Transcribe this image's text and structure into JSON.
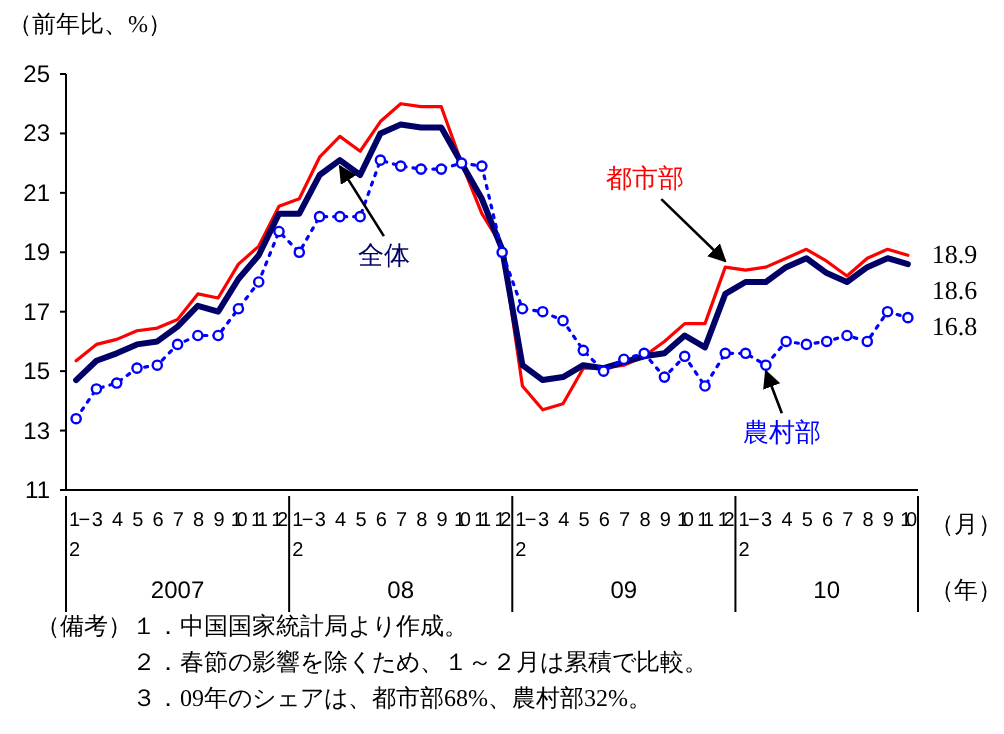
{
  "chart_data": {
    "type": "line",
    "ylabel": "（前年比、%）",
    "xlabel": "（月）",
    "categories": [
      "1−2",
      "3",
      "4",
      "5",
      "6",
      "7",
      "8",
      "9",
      "10",
      "11",
      "12",
      "1−2",
      "3",
      "4",
      "5",
      "6",
      "7",
      "8",
      "9",
      "10",
      "11",
      "12",
      "1−2",
      "3",
      "4",
      "5",
      "6",
      "7",
      "8",
      "9",
      "10",
      "11",
      "12",
      "1−2",
      "3",
      "4",
      "5",
      "6",
      "7",
      "8",
      "9",
      "10"
    ],
    "ylim": [
      11,
      25
    ],
    "yticks": [
      11,
      13,
      15,
      17,
      19,
      21,
      23,
      25
    ],
    "grid": false,
    "legend": false,
    "series": [
      {
        "name": "都市部",
        "color": "#ff0000",
        "line_style": "solid",
        "marker": "none",
        "values": [
          15.35,
          15.9,
          16.07,
          16.36,
          16.45,
          16.74,
          17.6,
          17.46,
          18.6,
          19.2,
          20.55,
          20.8,
          22.2,
          22.9,
          22.4,
          23.4,
          24.0,
          23.9,
          23.9,
          22.0,
          20.3,
          19.2,
          14.5,
          13.7,
          13.9,
          15.1,
          15.1,
          15.2,
          15.5,
          16.0,
          16.6,
          16.6,
          18.5,
          18.4,
          18.5,
          18.8,
          19.1,
          18.7,
          18.2,
          18.8,
          19.1,
          18.9
        ],
        "value_labels": [
          null,
          null,
          null,
          null,
          null,
          null,
          null,
          null,
          null,
          null,
          null,
          null,
          null,
          null,
          null,
          null,
          null,
          null,
          null,
          null,
          null,
          null,
          null,
          null,
          null,
          null,
          null,
          null,
          null,
          null,
          null,
          null,
          null,
          null,
          null,
          null,
          null,
          null,
          null,
          null,
          null,
          "18.9"
        ]
      },
      {
        "name": "全体",
        "color": "#000066",
        "line_style": "solid",
        "marker": "none",
        "values": [
          14.7,
          15.35,
          15.6,
          15.9,
          16.0,
          16.5,
          17.2,
          17.0,
          18.1,
          18.9,
          20.3,
          20.3,
          21.6,
          22.1,
          21.6,
          23.0,
          23.3,
          23.2,
          23.2,
          22.0,
          20.8,
          19.1,
          15.2,
          14.7,
          14.8,
          15.2,
          15.1,
          15.3,
          15.5,
          15.6,
          16.2,
          15.8,
          17.6,
          18.0,
          18.0,
          18.5,
          18.8,
          18.3,
          18.0,
          18.5,
          18.8,
          18.6
        ],
        "value_labels": [
          null,
          null,
          null,
          null,
          null,
          null,
          null,
          null,
          null,
          null,
          null,
          null,
          null,
          null,
          null,
          null,
          null,
          null,
          null,
          null,
          null,
          null,
          null,
          null,
          null,
          null,
          null,
          null,
          null,
          null,
          null,
          null,
          null,
          null,
          null,
          null,
          null,
          null,
          null,
          null,
          null,
          "18.6"
        ]
      },
      {
        "name": "農村部",
        "color": "#0000ff",
        "line_style": "dotted",
        "marker": "circle",
        "values": [
          13.4,
          14.4,
          14.6,
          15.1,
          15.2,
          15.9,
          16.2,
          16.2,
          17.1,
          18.0,
          19.7,
          19.0,
          20.2,
          20.2,
          20.2,
          22.1,
          21.9,
          21.8,
          21.8,
          22.0,
          21.9,
          19.0,
          17.1,
          17.0,
          16.7,
          15.7,
          15.0,
          15.4,
          15.6,
          14.8,
          15.5,
          14.5,
          15.6,
          15.6,
          15.2,
          16.0,
          15.9,
          16.0,
          16.2,
          16.0,
          17.0,
          16.8
        ],
        "value_labels": [
          null,
          null,
          null,
          null,
          null,
          null,
          null,
          null,
          null,
          null,
          null,
          null,
          null,
          null,
          null,
          null,
          null,
          null,
          null,
          null,
          null,
          null,
          null,
          null,
          null,
          null,
          null,
          null,
          null,
          null,
          null,
          null,
          null,
          null,
          null,
          null,
          null,
          null,
          null,
          null,
          null,
          "16.8"
        ]
      }
    ],
    "annotations": [
      "2007",
      "08",
      "09",
      "10",
      "（年）",
      "（備考）１．中国国家統計局より作成。",
      "２．春節の影響を除くため、１～２月は累積で比較。",
      "３．09年のシェアは、都市部68%、農村部32%。"
    ]
  }
}
